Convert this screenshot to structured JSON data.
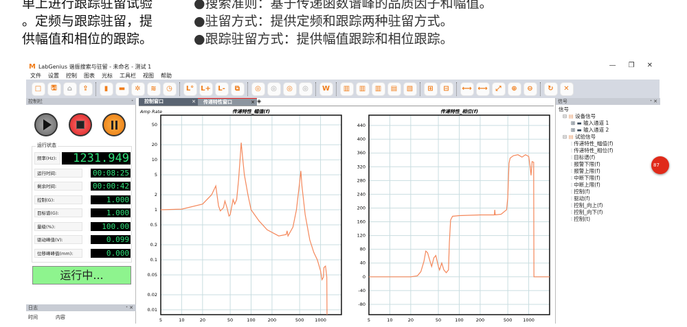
{
  "intro": {
    "left_lines": [
      "单上进行跟踪驻留试验",
      "。定频与跟踪驻留，提",
      "供幅值和相位的跟踪。"
    ],
    "bullets": [
      "●搜索准则：基于传递函数谱峰的品质因子和幅值。",
      "●驻留方式：提供定频和跟踪两种驻留方式。",
      "●跟踪驻留方式：提供幅值跟踪和相位跟踪。"
    ]
  },
  "window": {
    "logo": "M",
    "title": "LabGenius 谐振搜索与驻留 - 未命名 - 测试 1",
    "controls": [
      "—",
      "❐",
      "✕"
    ]
  },
  "menu": [
    "文件",
    "设置",
    "控制",
    "图表",
    "光标",
    "工具栏",
    "视图",
    "帮助"
  ],
  "toolbar": {
    "groups": [
      [
        "□",
        "🖫",
        "⌂",
        "⇪"
      ],
      [
        "▮",
        "▬",
        "✲",
        "≋",
        "◷"
      ],
      [
        "L°",
        "L+",
        "L-",
        "⧉"
      ],
      [
        "◎",
        "◎",
        "◎",
        "◎"
      ],
      [
        "W"
      ],
      [
        "▥",
        "▥",
        "▥",
        "▤",
        "▧"
      ],
      [
        "⊞",
        "⊟"
      ],
      [
        "⟷",
        "⟷",
        "⤢",
        "⊕",
        "⊖"
      ],
      [
        "↻",
        "✕"
      ]
    ],
    "disabled": [
      [
        2
      ],
      [],
      [],
      [
        1,
        3
      ],
      [],
      [],
      [],
      [],
      []
    ]
  },
  "control_panel": {
    "title": "控制栏",
    "pin": "ᐩ",
    "status_group": "运行状态",
    "rows": [
      {
        "label": "频率(Hz):",
        "value": "1231.949"
      },
      {
        "label": "运行时间:",
        "value": "00:08:25"
      },
      {
        "label": "剩余时间:",
        "value": "00:00:42"
      },
      {
        "label": "控制(G):",
        "value": "1.000"
      },
      {
        "label": "目标谱(G):",
        "value": "1.000"
      },
      {
        "label": "量级(%):",
        "value": "100.00"
      },
      {
        "label": "驱动峰值(V):",
        "value": "0.099"
      },
      {
        "label": "位移峰峰值(mm):",
        "value": "0.000"
      }
    ],
    "running": "运行中..."
  },
  "log_panel": {
    "title": "日志",
    "columns": [
      "时间",
      "内容"
    ],
    "controls": "ᐩ ✕"
  },
  "tabs": [
    {
      "label": "控制窗口",
      "close": "×"
    },
    {
      "label": "传递特性窗口",
      "close": "×"
    }
  ],
  "signal_panel": {
    "title": "信号",
    "controls": "ᐩ ✕",
    "root": "信号",
    "groups": [
      {
        "label": "设备信号",
        "items": [
          "输入通道 1",
          "输入通道 2"
        ]
      },
      {
        "label": "试验信号",
        "items": [
          "传递特性_幅值(f)",
          "传递特性_相位(f)",
          "目标谱(f)",
          "报警下限(f)",
          "报警上限(f)",
          "中断下限(f)",
          "中断上限(f)",
          "控制(f)",
          "驱动(f)",
          "控制_向上(f)",
          "控制_向下(f)",
          "控制(t)"
        ]
      }
    ]
  },
  "badge": "87",
  "colors": {
    "curve": "#f4875a",
    "grid": "#c9dde0",
    "accent": "#f07d1a",
    "lcd": "#2fe07a",
    "running_bg": "#8ef48e"
  },
  "chart_data": [
    {
      "type": "line",
      "title": "传递特性_幅值(f)",
      "ylabel": "Amp Rate",
      "xscale": "log",
      "yscale": "log",
      "xlim": [
        5,
        2000
      ],
      "ylim": [
        0.008,
        78
      ],
      "grid": true,
      "xticks": [
        5,
        10,
        20,
        50,
        100,
        200,
        500,
        1000
      ],
      "yticks": [
        50,
        20,
        10,
        5,
        2,
        1,
        0.5,
        0.2,
        0.1,
        0.05,
        0.02,
        0.01
      ],
      "points": [
        [
          5,
          1
        ],
        [
          10,
          1.03
        ],
        [
          20,
          1.3
        ],
        [
          27,
          2
        ],
        [
          31,
          3
        ],
        [
          34,
          1.2
        ],
        [
          36,
          0.95
        ],
        [
          40,
          1.1
        ],
        [
          42,
          1.5
        ],
        [
          45,
          1.1
        ],
        [
          48,
          0.75
        ],
        [
          50,
          0.8
        ],
        [
          55,
          1.6
        ],
        [
          58,
          1.3
        ],
        [
          62,
          1.6
        ],
        [
          66,
          4
        ],
        [
          70,
          12
        ],
        [
          72,
          22
        ],
        [
          75,
          12
        ],
        [
          80,
          5
        ],
        [
          90,
          2
        ],
        [
          100,
          1
        ],
        [
          130,
          0.6
        ],
        [
          170,
          0.4
        ],
        [
          250,
          0.3
        ],
        [
          320,
          0.32
        ],
        [
          330,
          0.38
        ],
        [
          340,
          0.3
        ],
        [
          400,
          0.45
        ],
        [
          450,
          1
        ],
        [
          500,
          3.5
        ],
        [
          520,
          6
        ],
        [
          540,
          3
        ],
        [
          600,
          0.8
        ],
        [
          700,
          0.25
        ],
        [
          800,
          0.14
        ],
        [
          900,
          0.1
        ],
        [
          1000,
          0.06
        ],
        [
          1050,
          0.04
        ],
        [
          1100,
          0.045
        ],
        [
          1120,
          0.07
        ],
        [
          1180,
          0.075
        ],
        [
          1230,
          0.045
        ],
        [
          1240,
          0.008
        ]
      ]
    },
    {
      "type": "line",
      "title": "传递特性_相位(f)",
      "ylabel": "",
      "xscale": "log",
      "yscale": "linear",
      "xlim": [
        5,
        2000
      ],
      "ylim": [
        -110,
        470
      ],
      "grid": true,
      "xticks": [
        5,
        10,
        20,
        50,
        100,
        200,
        500,
        1000
      ],
      "yticks": [
        440,
        400,
        360,
        320,
        280,
        240,
        200,
        160,
        120,
        80,
        40,
        0,
        -40,
        -80
      ],
      "points": [
        [
          5,
          0
        ],
        [
          20,
          0
        ],
        [
          25,
          3
        ],
        [
          28,
          15
        ],
        [
          31,
          45
        ],
        [
          33,
          75
        ],
        [
          35,
          70
        ],
        [
          38,
          45
        ],
        [
          40,
          30
        ],
        [
          43,
          55
        ],
        [
          46,
          62
        ],
        [
          50,
          30
        ],
        [
          52,
          20
        ],
        [
          56,
          40
        ],
        [
          60,
          20
        ],
        [
          65,
          12
        ],
        [
          70,
          20
        ],
        [
          72,
          100
        ],
        [
          75,
          165
        ],
        [
          80,
          176
        ],
        [
          100,
          178
        ],
        [
          200,
          180
        ],
        [
          320,
          180
        ],
        [
          325,
          195
        ],
        [
          330,
          180
        ],
        [
          400,
          182
        ],
        [
          480,
          195
        ],
        [
          500,
          230
        ],
        [
          520,
          330
        ],
        [
          540,
          345
        ],
        [
          600,
          352
        ],
        [
          700,
          355
        ],
        [
          800,
          348
        ],
        [
          900,
          355
        ],
        [
          1000,
          350
        ],
        [
          1050,
          320
        ],
        [
          1080,
          295
        ],
        [
          1120,
          335
        ],
        [
          1180,
          333
        ],
        [
          1190,
          0
        ],
        [
          2000,
          0
        ]
      ]
    }
  ]
}
